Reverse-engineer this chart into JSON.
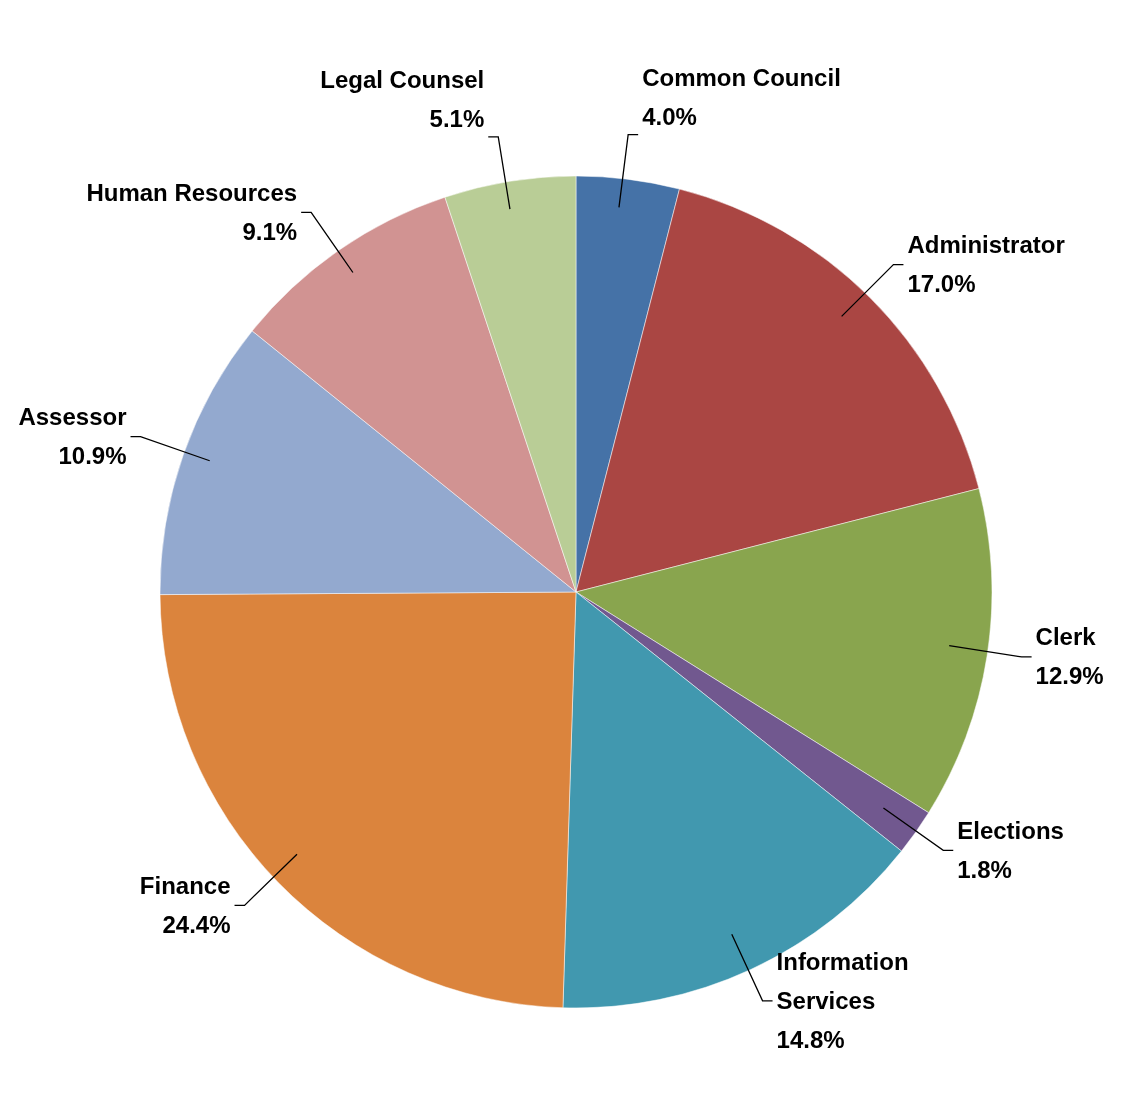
{
  "chart_data": {
    "type": "pie",
    "categories": [
      "Common Council",
      "Administrator",
      "Clerk",
      "Elections",
      "Information Services",
      "Finance",
      "Assessor",
      "Human Resources",
      "Legal Counsel"
    ],
    "values": [
      4.0,
      17.0,
      12.9,
      1.8,
      14.8,
      24.4,
      10.9,
      9.1,
      5.1
    ],
    "value_labels": [
      "4.0%",
      "17.0%",
      "12.9%",
      "1.8%",
      "14.8%",
      "24.4%",
      "10.9%",
      "9.1%",
      "5.1%"
    ],
    "colors": [
      "#4572a7",
      "#aa4643",
      "#89a54e",
      "#71588f",
      "#4198af",
      "#db843d",
      "#93a9cf",
      "#d19392",
      "#b9cd96"
    ],
    "legend": false
  }
}
